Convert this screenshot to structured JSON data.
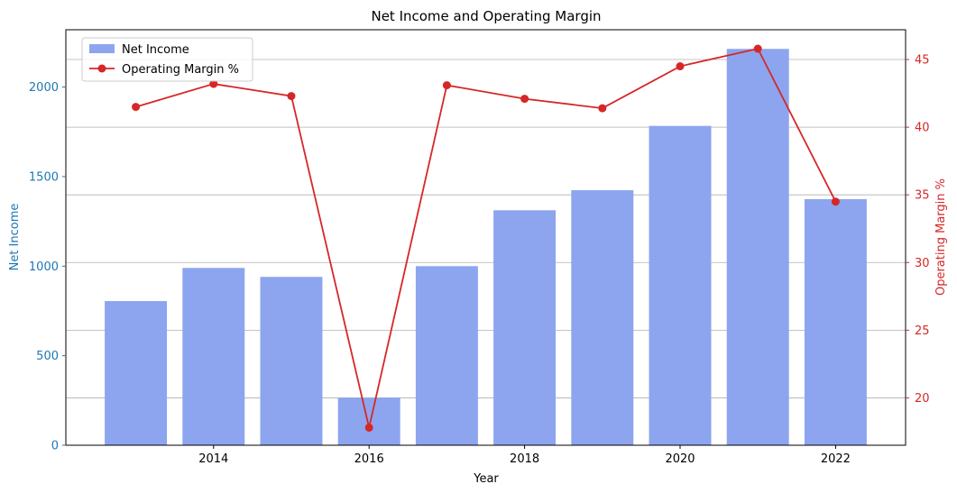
{
  "chart_data": {
    "type": "bar",
    "title": "Net Income and Operating Margin",
    "xlabel": "Year",
    "ylabel": "Net Income",
    "y2label": "Operating Margin %",
    "xlim": [
      2012.1,
      2022.9
    ],
    "ylim": [
      0,
      2320
    ],
    "y2lim": [
      16.5,
      47.2
    ],
    "xticks": [
      "2014",
      "2016",
      "2018",
      "2020",
      "2022"
    ],
    "yticks": [
      "0",
      "500",
      "1000",
      "1500",
      "2000"
    ],
    "y2ticks": [
      "20",
      "25",
      "30",
      "35",
      "40",
      "45"
    ],
    "grid": true,
    "legend_position": "top-left",
    "x": [
      2013,
      2014,
      2015,
      2016,
      2017,
      2018,
      2019,
      2020,
      2021,
      2022
    ],
    "series": [
      {
        "name": "Net Income",
        "kind": "bar",
        "axis": "left",
        "color": "#8da5ee",
        "values": [
          805,
          990,
          940,
          265,
          1000,
          1312,
          1424,
          1783,
          2213,
          1374
        ]
      },
      {
        "name": "Operating Margin %",
        "kind": "line",
        "axis": "right",
        "color": "#d62728",
        "values": [
          41.5,
          43.2,
          42.3,
          17.8,
          43.1,
          42.1,
          41.4,
          44.5,
          45.8,
          34.5
        ]
      }
    ],
    "left_axis_color": "#1f77b4",
    "right_axis_color": "#d62728"
  }
}
